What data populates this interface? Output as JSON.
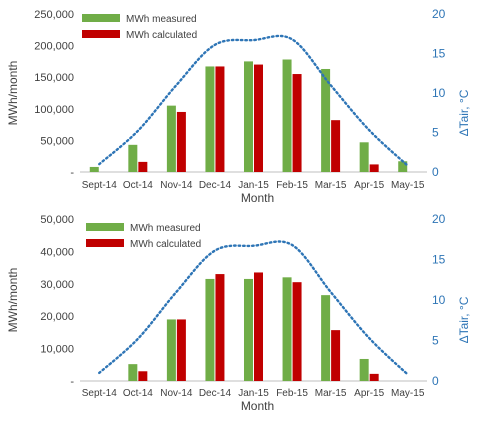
{
  "chart_data": [
    {
      "type": "bar",
      "categories": [
        "Sept-14",
        "Oct-14",
        "Nov-14",
        "Dec-14",
        "Jan-15",
        "Feb-15",
        "Mar-15",
        "Apr-15",
        "May-15"
      ],
      "series": [
        {
          "name": "MWh measured",
          "values": [
            8000,
            43000,
            105000,
            167000,
            175000,
            178000,
            163000,
            47000,
            17000
          ],
          "color": "#70ad47"
        },
        {
          "name": "MWh calculated",
          "values": [
            0,
            16000,
            95000,
            167000,
            170000,
            155000,
            82000,
            12000,
            0
          ],
          "color": "#c00000"
        }
      ],
      "line_series": {
        "values": [
          1.0,
          5.2,
          11.0,
          16.1,
          16.7,
          16.8,
          11.0,
          5.3,
          0.8
        ],
        "color": "#2e75b6",
        "style": "dotted"
      },
      "left_axis": {
        "ticks": [
          "-",
          "50,000",
          "100,000",
          "150,000",
          "200,000",
          "250,000"
        ],
        "max": 250000,
        "label": "MWh/month"
      },
      "right_axis": {
        "ticks": [
          "0",
          "5",
          "10",
          "15",
          "20"
        ],
        "max": 20,
        "label": "ΔTair, °C"
      },
      "xlabel": "Month",
      "legend_position": "top-left",
      "grid": false
    },
    {
      "type": "bar",
      "categories": [
        "Sept-14",
        "Oct-14",
        "Nov-14",
        "Dec-14",
        "Jan-15",
        "Feb-15",
        "Mar-15",
        "Apr-15",
        "May-15"
      ],
      "series": [
        {
          "name": "MWh measured",
          "values": [
            0,
            5200,
            19000,
            31500,
            31500,
            32000,
            26500,
            6800,
            0
          ],
          "color": "#70ad47"
        },
        {
          "name": "MWh calculated",
          "values": [
            0,
            3000,
            19000,
            33000,
            33500,
            30500,
            15700,
            2200,
            0
          ],
          "color": "#c00000"
        }
      ],
      "line_series": {
        "values": [
          1.0,
          5.2,
          11.0,
          16.1,
          16.7,
          16.8,
          11.0,
          5.3,
          0.8
        ],
        "color": "#2e75b6",
        "style": "dotted"
      },
      "left_axis": {
        "ticks": [
          "-",
          "10,000",
          "20,000",
          "30,000",
          "40,000",
          "50,000"
        ],
        "max": 50000,
        "label": "MWh/month"
      },
      "right_axis": {
        "ticks": [
          "0",
          "5",
          "10",
          "15",
          "20"
        ],
        "max": 20,
        "label": "ΔTair, °C"
      },
      "xlabel": "Month",
      "legend_position": "top-left",
      "grid": false
    }
  ]
}
